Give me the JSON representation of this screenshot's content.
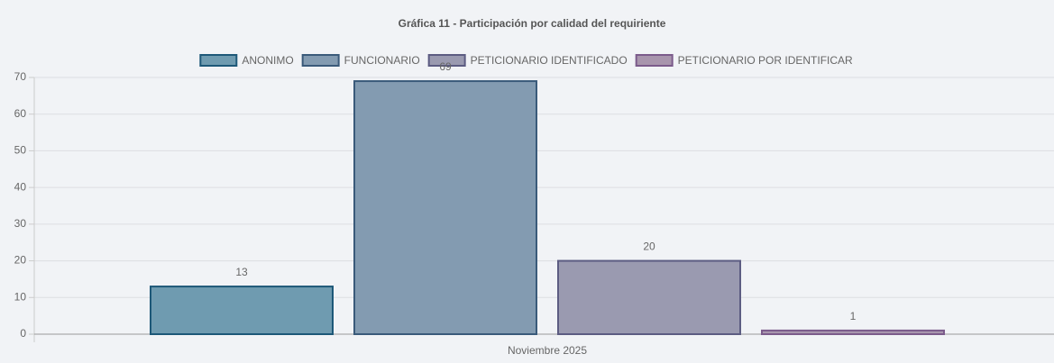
{
  "chart_data": {
    "type": "bar",
    "title": "Gráfica 11 - Participación por calidad del requiriente",
    "categories": [
      "Noviembre 2025"
    ],
    "series": [
      {
        "name": "ANONIMO",
        "color": "#6f9bb0",
        "border": "#1d5878",
        "values": [
          13
        ]
      },
      {
        "name": "FUNCIONARIO",
        "color": "#839bb1",
        "border": "#3a5a7a",
        "values": [
          69
        ]
      },
      {
        "name": "PETICIONARIO IDENTIFICADO",
        "color": "#9a9ab0",
        "border": "#5c5c82",
        "values": [
          20
        ]
      },
      {
        "name": "PETICIONARIO POR IDENTIFICAR",
        "color": "#a895ad",
        "border": "#7b5b8b",
        "values": [
          1
        ]
      }
    ],
    "ylim": [
      0,
      70
    ],
    "yticks": [
      0,
      10,
      20,
      30,
      40,
      50,
      60,
      70
    ],
    "grid": true,
    "legend": "top"
  }
}
